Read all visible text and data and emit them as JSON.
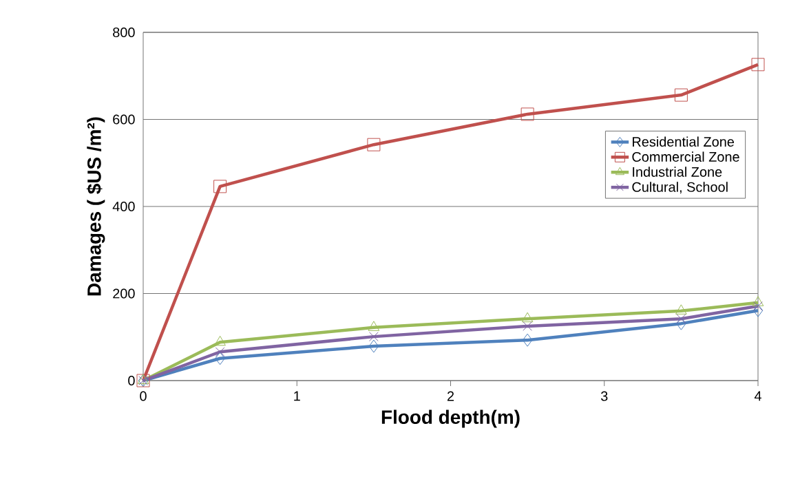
{
  "chart_data": {
    "type": "line",
    "xlabel": "Flood depth(m)",
    "ylabel": "Damages ( $US /m²)",
    "x": [
      0,
      0.5,
      1.5,
      2.5,
      3.5,
      4
    ],
    "series": [
      {
        "name": "Residential Zone",
        "color": "#4f81bd",
        "marker": "diamond",
        "values": [
          0,
          51,
          79,
          93,
          131,
          161
        ]
      },
      {
        "name": "Commercial Zone",
        "color": "#c0504d",
        "marker": "square",
        "values": [
          0,
          446,
          542,
          612,
          656,
          726
        ]
      },
      {
        "name": "Industrial Zone",
        "color": "#9bbb59",
        "marker": "triangle",
        "values": [
          0,
          88,
          122,
          142,
          160,
          179
        ]
      },
      {
        "name": "Cultural, School",
        "color": "#8064a2",
        "marker": "cross",
        "values": [
          0,
          66,
          101,
          125,
          142,
          171
        ]
      }
    ],
    "xlim": [
      0,
      4
    ],
    "xticks": [
      0,
      1,
      2,
      3,
      4
    ],
    "ylim": [
      0,
      800
    ],
    "yticks": [
      0,
      200,
      400,
      600,
      800
    ],
    "grid": "y",
    "legend": "right",
    "line_style": "solid"
  }
}
